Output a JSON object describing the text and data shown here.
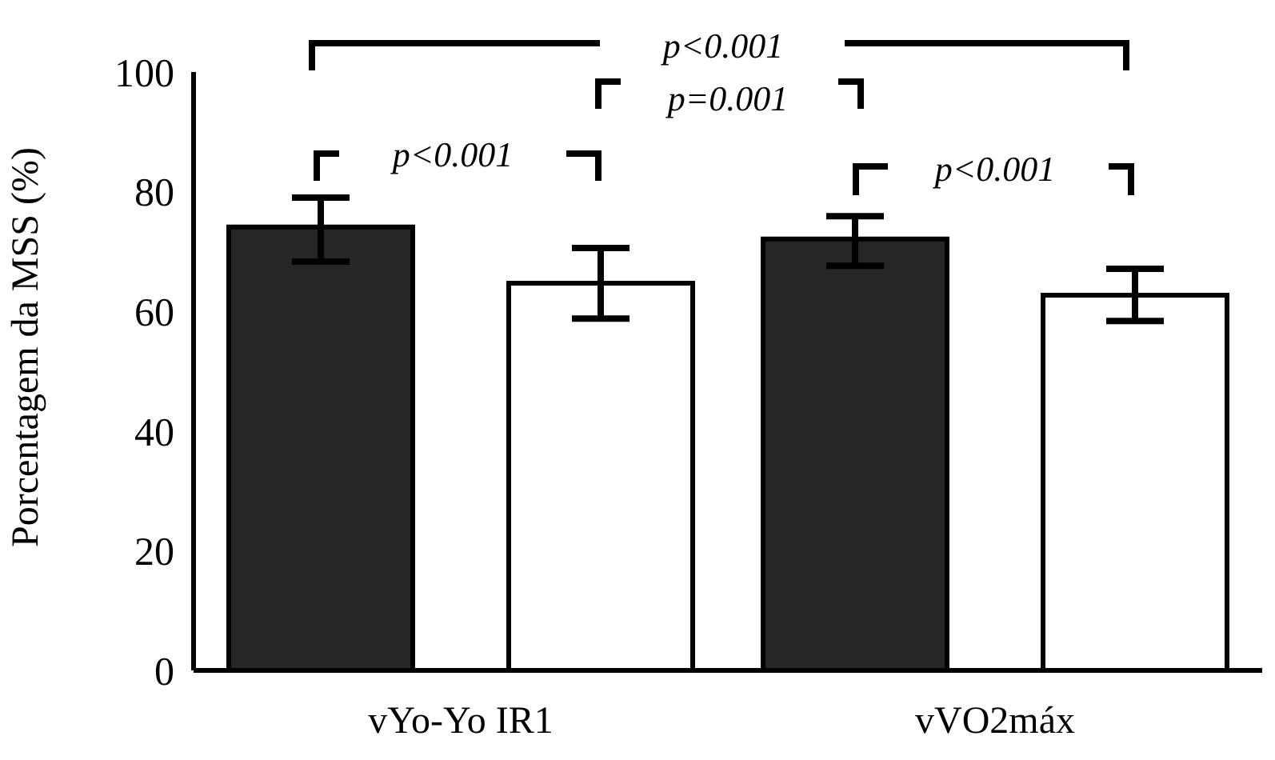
{
  "chart_data": {
    "type": "bar",
    "ylabel": "Porcentagem da MSS (%)",
    "categories": [
      "vYo-Yo IR1",
      "vVO2máx"
    ],
    "series": [
      {
        "color": "#262626",
        "values": [
          74.1,
          72.1
        ],
        "errors": [
          [
            68.3,
            79.0
          ],
          [
            67.6,
            75.9
          ]
        ]
      },
      {
        "color": "#ffffff",
        "values": [
          64.7,
          62.7
        ],
        "errors": [
          [
            58.8,
            70.6
          ],
          [
            58.4,
            67.1
          ]
        ]
      }
    ],
    "ylim": [
      0,
      100
    ],
    "yticks": [
      0,
      20,
      40,
      60,
      80,
      100
    ],
    "annotations": [
      "p<0.001",
      "p=0.001",
      "p<0.001",
      "p<0.001"
    ]
  }
}
